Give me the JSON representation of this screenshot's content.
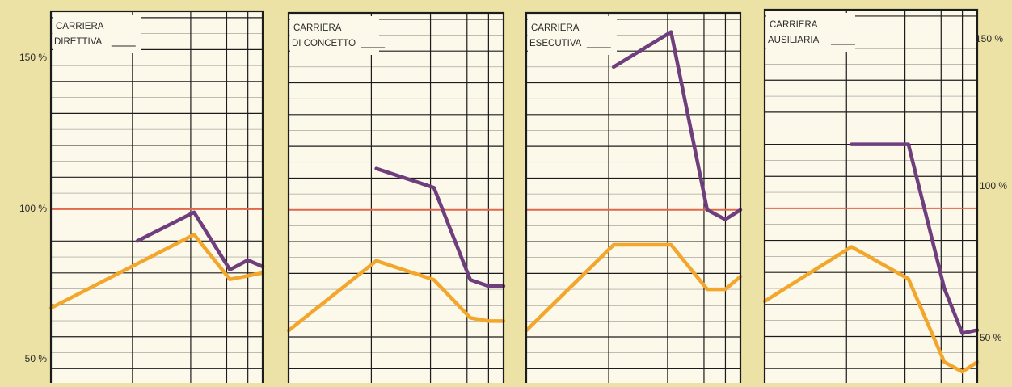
{
  "colors": {
    "background": "#ede2a6",
    "panel": "#fcf8ea",
    "grid": "#1c1c1c",
    "reference": "#e2674b",
    "series_purple": "#6f3f7d",
    "series_orange": "#f3a62c",
    "text": "#2a2a2a"
  },
  "axis_labels": {
    "left_top": "150 %",
    "left_mid": "100 %",
    "left_bottom": "50 %",
    "right_top": "150 %",
    "right_mid": "100 %",
    "right_bottom": "50 %"
  },
  "chart_data": [
    {
      "type": "line",
      "title_line1": "CARRIERA",
      "title_line2": "DIRETTIVA",
      "ylim": [
        45,
        162
      ],
      "reference_line": 100,
      "grid": true,
      "series": [
        {
          "color": "purple",
          "x": [
            1.45,
            2.4,
            3.0,
            3.3,
            3.55
          ],
          "y": [
            90,
            99,
            81,
            84,
            82
          ]
        },
        {
          "color": "orange",
          "x": [
            0,
            2.4,
            3.0,
            3.55
          ],
          "y": [
            69,
            92,
            78,
            80
          ]
        }
      ]
    },
    {
      "type": "line",
      "title_line1": "CARRIERA",
      "title_line2": "DI CONCETTO",
      "ylim": [
        45,
        162
      ],
      "reference_line": 100,
      "grid": true,
      "series": [
        {
          "color": "purple",
          "x": [
            1.45,
            2.4,
            3.0,
            3.3,
            3.55
          ],
          "y": [
            113,
            107,
            78,
            76,
            76
          ]
        },
        {
          "color": "orange",
          "x": [
            0,
            1.45,
            2.4,
            3.0,
            3.3,
            3.55
          ],
          "y": [
            62,
            84,
            78,
            66,
            65,
            65
          ]
        }
      ]
    },
    {
      "type": "line",
      "title_line1": "CARRIERA",
      "title_line2": "ESECUTIVA",
      "ylim": [
        45,
        162
      ],
      "reference_line": 100,
      "grid": true,
      "series": [
        {
          "color": "purple",
          "x": [
            1.45,
            2.4,
            3.0,
            3.3,
            3.55
          ],
          "y": [
            145,
            156,
            100,
            97,
            100
          ]
        },
        {
          "color": "orange",
          "x": [
            0,
            1.45,
            2.4,
            3.0,
            3.3,
            3.55
          ],
          "y": [
            62,
            89,
            89,
            75,
            75,
            79
          ]
        }
      ]
    },
    {
      "type": "line",
      "title_line1": "CARRIERA",
      "title_line2": "AUSILIARIA",
      "ylim": [
        45,
        162
      ],
      "reference_line": 100,
      "grid": true,
      "series": [
        {
          "color": "purple",
          "x": [
            1.45,
            2.4,
            3.0,
            3.3,
            3.55
          ],
          "y": [
            120,
            120,
            75,
            61,
            62
          ]
        },
        {
          "color": "orange",
          "x": [
            0,
            1.45,
            2.4,
            3.0,
            3.3,
            3.55
          ],
          "y": [
            71,
            88,
            78,
            52,
            49,
            52
          ]
        }
      ]
    }
  ]
}
